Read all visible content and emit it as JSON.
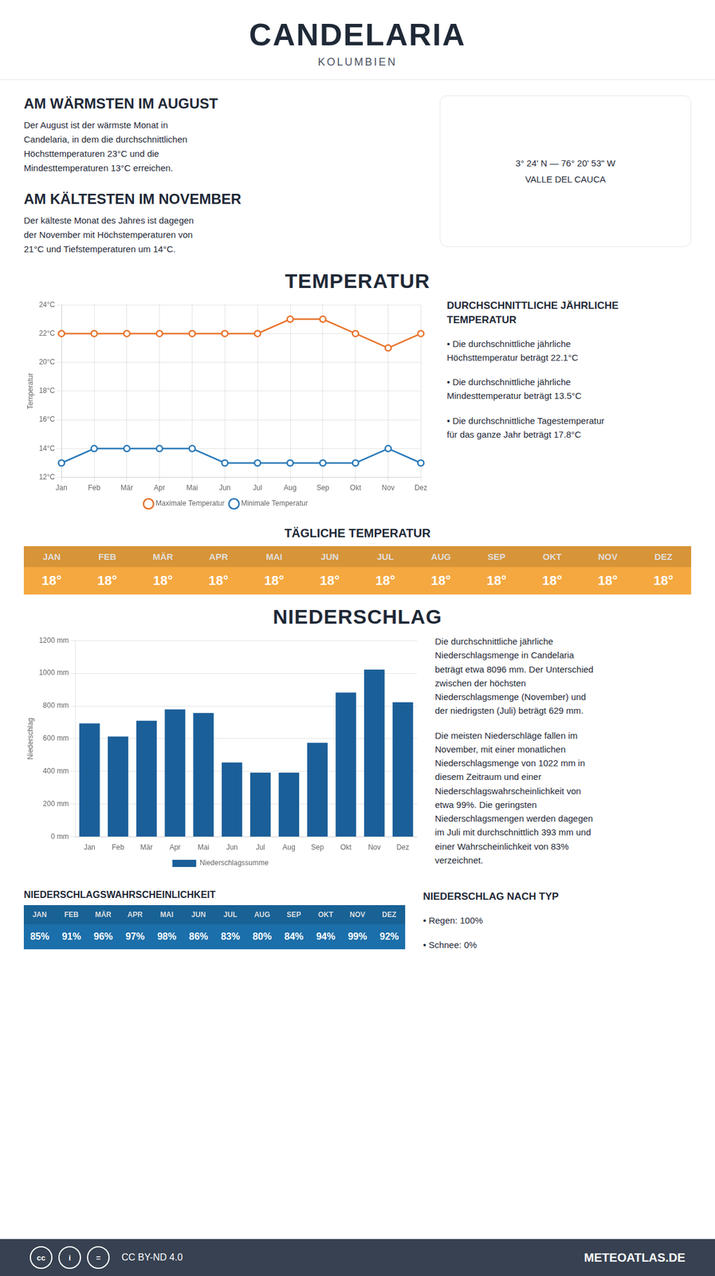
{
  "title": "CANDELARIA",
  "subtitle": "KOLUMBIEN",
  "annotations": [
    "AM WÄRMSTEN IM AUGUST",
    "Der August ist der wärmste Monat in\nCandelaria, in dem die durchschnittlichen\nHöchsttemperaturen 23°C und die\nMindesttemperaturen 13°C erreichen.",
    "AM KÄLTESTEN IM NOVEMBER",
    "Der kälteste Monat des Jahres ist dagegen\nder November mit Höchstemperaturen von\n21°C und Tiefstemperaturen um 14°C.",
    "3° 24' N — 76° 20' 53\" W",
    "VALLE DEL CAUCA",
    "cc",
    "i",
    "=",
    "CC BY-ND 4.0",
    "METEOATLAS.DE"
  ],
  "chart_data": [
    {
      "type": "line",
      "title": "TEMPERATUR",
      "ylabel": "Temperatur",
      "categories": [
        "Jan",
        "Feb",
        "Mär",
        "Apr",
        "Mai",
        "Jun",
        "Jul",
        "Aug",
        "Sep",
        "Okt",
        "Nov",
        "Dez"
      ],
      "series": [
        {
          "name": "Maximale Temperatur",
          "color": "#e8722a",
          "values": [
            22,
            22,
            22,
            22,
            22,
            22,
            22,
            23,
            23,
            22,
            21,
            22
          ]
        },
        {
          "name": "Minimale Temperatur",
          "color": "#2878b8",
          "values": [
            13,
            14,
            14,
            14,
            14,
            13,
            13,
            13,
            13,
            13,
            14,
            13
          ]
        }
      ],
      "ylim": [
        12,
        24
      ],
      "yticks": [
        {
          "value": 12,
          "label": "12°C"
        },
        {
          "value": 14,
          "label": "14°C"
        },
        {
          "value": 16,
          "label": "16°C"
        },
        {
          "value": 18,
          "label": "18°C"
        },
        {
          "value": 20,
          "label": "20°C"
        },
        {
          "value": 22,
          "label": "22°C"
        },
        {
          "value": 24,
          "label": "24°C"
        }
      ],
      "grid": true,
      "legend": "bottom",
      "marker": "circle",
      "line_style": "solid",
      "annotations": [
        "DURCHSCHNITTLICHE JÄHRLICHE\nTEMPERATUR",
        "• Die durchschnittliche jährliche\nHöchsttemperatur beträgt 22.1°C",
        "• Die durchschnittliche jährliche\nMindesttemperatur beträgt 13.5°C",
        "• Die durchschnittliche Tagestemperatur\nfür das ganze Jahr beträgt 17.8°C"
      ]
    },
    {
      "type": "table",
      "title": "TÄGLICHE TEMPERATUR",
      "categories": [
        "JAN",
        "FEB",
        "MÄR",
        "APR",
        "MAI",
        "JUN",
        "JUL",
        "AUG",
        "SEP",
        "OKT",
        "NOV",
        "DEZ"
      ],
      "values": [
        18,
        18,
        18,
        18,
        18,
        18,
        18,
        18,
        18,
        18,
        18,
        18
      ],
      "value_labels": [
        "18°",
        "18°",
        "18°",
        "18°",
        "18°",
        "18°",
        "18°",
        "18°",
        "18°",
        "18°",
        "18°",
        "18°"
      ],
      "color": "#f5a840"
    },
    {
      "type": "bar",
      "title": "NIEDERSCHLAG",
      "ylabel": "Niederschlag",
      "categories": [
        "Jan",
        "Feb",
        "Mär",
        "Apr",
        "Mai",
        "Jun",
        "Jul",
        "Aug",
        "Sep",
        "Okt",
        "Nov",
        "Dez"
      ],
      "series": [
        {
          "name": "Niederschlagssumme",
          "color": "#1b5f99",
          "values": [
            693,
            613,
            710,
            779,
            757,
            455,
            393,
            393,
            575,
            882,
            1022,
            823
          ]
        }
      ],
      "ylim": [
        0,
        1200
      ],
      "yticks": [
        {
          "value": 0,
          "label": "0 mm"
        },
        {
          "value": 200,
          "label": "200 mm"
        },
        {
          "value": 400,
          "label": "400 mm"
        },
        {
          "value": 600,
          "label": "600 mm"
        },
        {
          "value": 800,
          "label": "800 mm"
        },
        {
          "value": 1000,
          "label": "1000 mm"
        },
        {
          "value": 1200,
          "label": "1200 mm"
        }
      ],
      "grid": "y",
      "legend": "bottom",
      "annotations": [
        "Die durchschnittliche jährliche\nNiederschlagsmenge in Candelaria\nbeträgt etwa 8096 mm. Der Unterschied\nzwischen der höchsten\nNiederschlagsmenge (November) und\nder niedrigsten (Juli) beträgt 629 mm.",
        "Die meisten Niederschläge fallen im\nNovember, mit einer monatlichen\nNiederschlagsmenge von 1022 mm in\ndiesem Zeitraum und einer\nNiederschlagswahrscheinlichkeit von\netwa 99%. Die geringsten\nNiederschlagsmengen werden dagegen\nim Juli mit durchschnittlich 393 mm und\neiner Wahrscheinlichkeit von 83%\nverzeichnet."
      ]
    },
    {
      "type": "table",
      "title": "NIEDERSCHLAGSWAHRSCHEINLICHKEIT",
      "categories": [
        "JAN",
        "FEB",
        "MÄR",
        "APR",
        "MAI",
        "JUN",
        "JUL",
        "AUG",
        "SEP",
        "OKT",
        "NOV",
        "DEZ"
      ],
      "values": [
        85,
        91,
        96,
        97,
        98,
        86,
        83,
        80,
        84,
        94,
        99,
        92
      ],
      "value_labels": [
        "85%",
        "91%",
        "96%",
        "97%",
        "98%",
        "86%",
        "83%",
        "80%",
        "84%",
        "94%",
        "99%",
        "92%"
      ],
      "color": "#1b6faa",
      "annotations": [
        "NIEDERSCHLAG NACH TYP",
        "• Regen: 100%",
        "• Schnee: 0%"
      ]
    }
  ]
}
